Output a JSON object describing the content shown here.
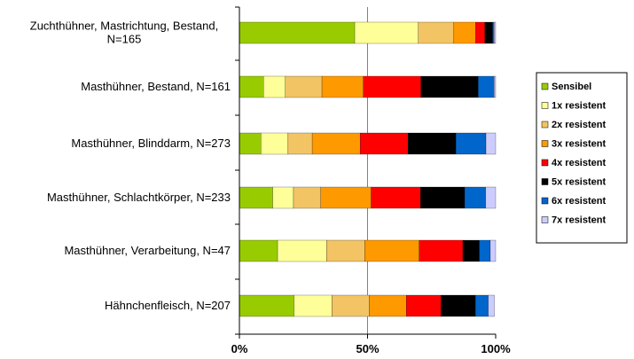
{
  "chart_data": {
    "type": "bar",
    "orientation": "horizontal",
    "stacked": true,
    "percent": true,
    "categories": [
      [
        "Zuchthühner, Mastrichtung, Bestand,",
        "N=165"
      ],
      [
        "Masthühner, Bestand, N=161"
      ],
      [
        "Masthühner, Blinddarm, N=273"
      ],
      [
        "Masthühner, Schlachtkörper, N=233"
      ],
      [
        "Masthühner, Verarbeitung, N=47"
      ],
      [
        "Hähnchenfleisch, N=207"
      ]
    ],
    "series": [
      {
        "name": "Sensibel",
        "color": "#99cc00",
        "values": [
          45.0,
          9.4,
          8.4,
          13.0,
          14.9,
          21.3
        ]
      },
      {
        "name": "1x resistent",
        "color": "#ffff99",
        "values": [
          24.8,
          8.5,
          10.6,
          8.1,
          19.1,
          14.8
        ]
      },
      {
        "name": "2x resistent",
        "color": "#f2c464",
        "values": [
          13.9,
          14.3,
          9.4,
          10.6,
          14.9,
          14.5
        ]
      },
      {
        "name": "3x resistent",
        "color": "#ff9900",
        "values": [
          8.5,
          16.2,
          18.7,
          19.7,
          21.3,
          14.5
        ]
      },
      {
        "name": "4x resistent",
        "color": "#ff0000",
        "values": [
          3.6,
          22.4,
          18.7,
          19.3,
          17.0,
          13.5
        ]
      },
      {
        "name": "5x resistent",
        "color": "#000000",
        "values": [
          3.0,
          22.4,
          18.7,
          17.2,
          6.4,
          13.5
        ]
      },
      {
        "name": "6x resistent",
        "color": "#0066cc",
        "values": [
          0.6,
          6.2,
          11.7,
          8.2,
          4.3,
          5.0
        ]
      },
      {
        "name": "7x resistent",
        "color": "#ccccff",
        "values": [
          0.6,
          0.6,
          3.8,
          3.9,
          2.1,
          2.4
        ]
      }
    ],
    "xlim": [
      0,
      100
    ],
    "xticks": [
      "0%",
      "50%",
      "100%"
    ],
    "gridlines": [
      50
    ],
    "legend_position": "right"
  }
}
